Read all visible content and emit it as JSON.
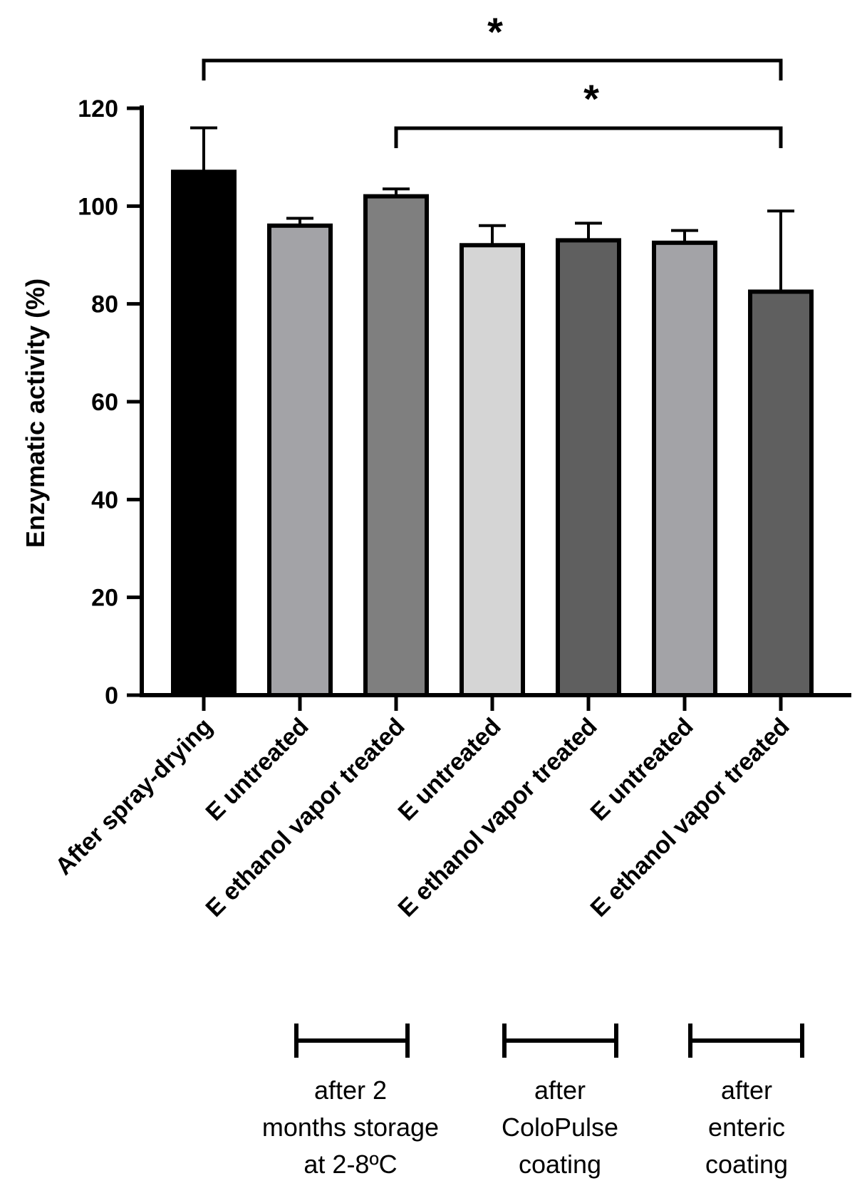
{
  "chart_data": {
    "type": "bar",
    "title": "",
    "xlabel": "",
    "ylabel": "Enzymatic activity (%)",
    "ylim": [
      0,
      120
    ],
    "yticks": [
      0,
      20,
      40,
      60,
      80,
      100,
      120
    ],
    "categories": [
      "After spray-drying",
      "E untreated",
      "E ethanol vapor treated",
      "E untreated",
      "E ethanol vapor treated",
      "E untreated",
      "E ethanol vapor treated"
    ],
    "values": [
      107,
      96,
      102,
      92,
      93,
      92.5,
      82.5
    ],
    "errors": [
      9,
      1.5,
      1.5,
      4,
      3.5,
      2.5,
      16.5
    ],
    "colors": [
      "#000000",
      "#a3a3a7",
      "#7f7f7f",
      "#d5d5d5",
      "#5f5f5f",
      "#a3a3a7",
      "#5f5f5f"
    ],
    "significance": [
      {
        "from": 0,
        "to": 6,
        "label": "*"
      },
      {
        "from": 2,
        "to": 6,
        "label": "*"
      }
    ],
    "groups": [
      {
        "from": 1,
        "to": 2,
        "lines": [
          "after 2",
          "months storage",
          "at 2-8ºC"
        ]
      },
      {
        "from": 3,
        "to": 4,
        "lines": [
          "after",
          "ColoPulse",
          "coating"
        ]
      },
      {
        "from": 5,
        "to": 6,
        "lines": [
          "after",
          "enteric",
          "coating"
        ]
      }
    ]
  }
}
